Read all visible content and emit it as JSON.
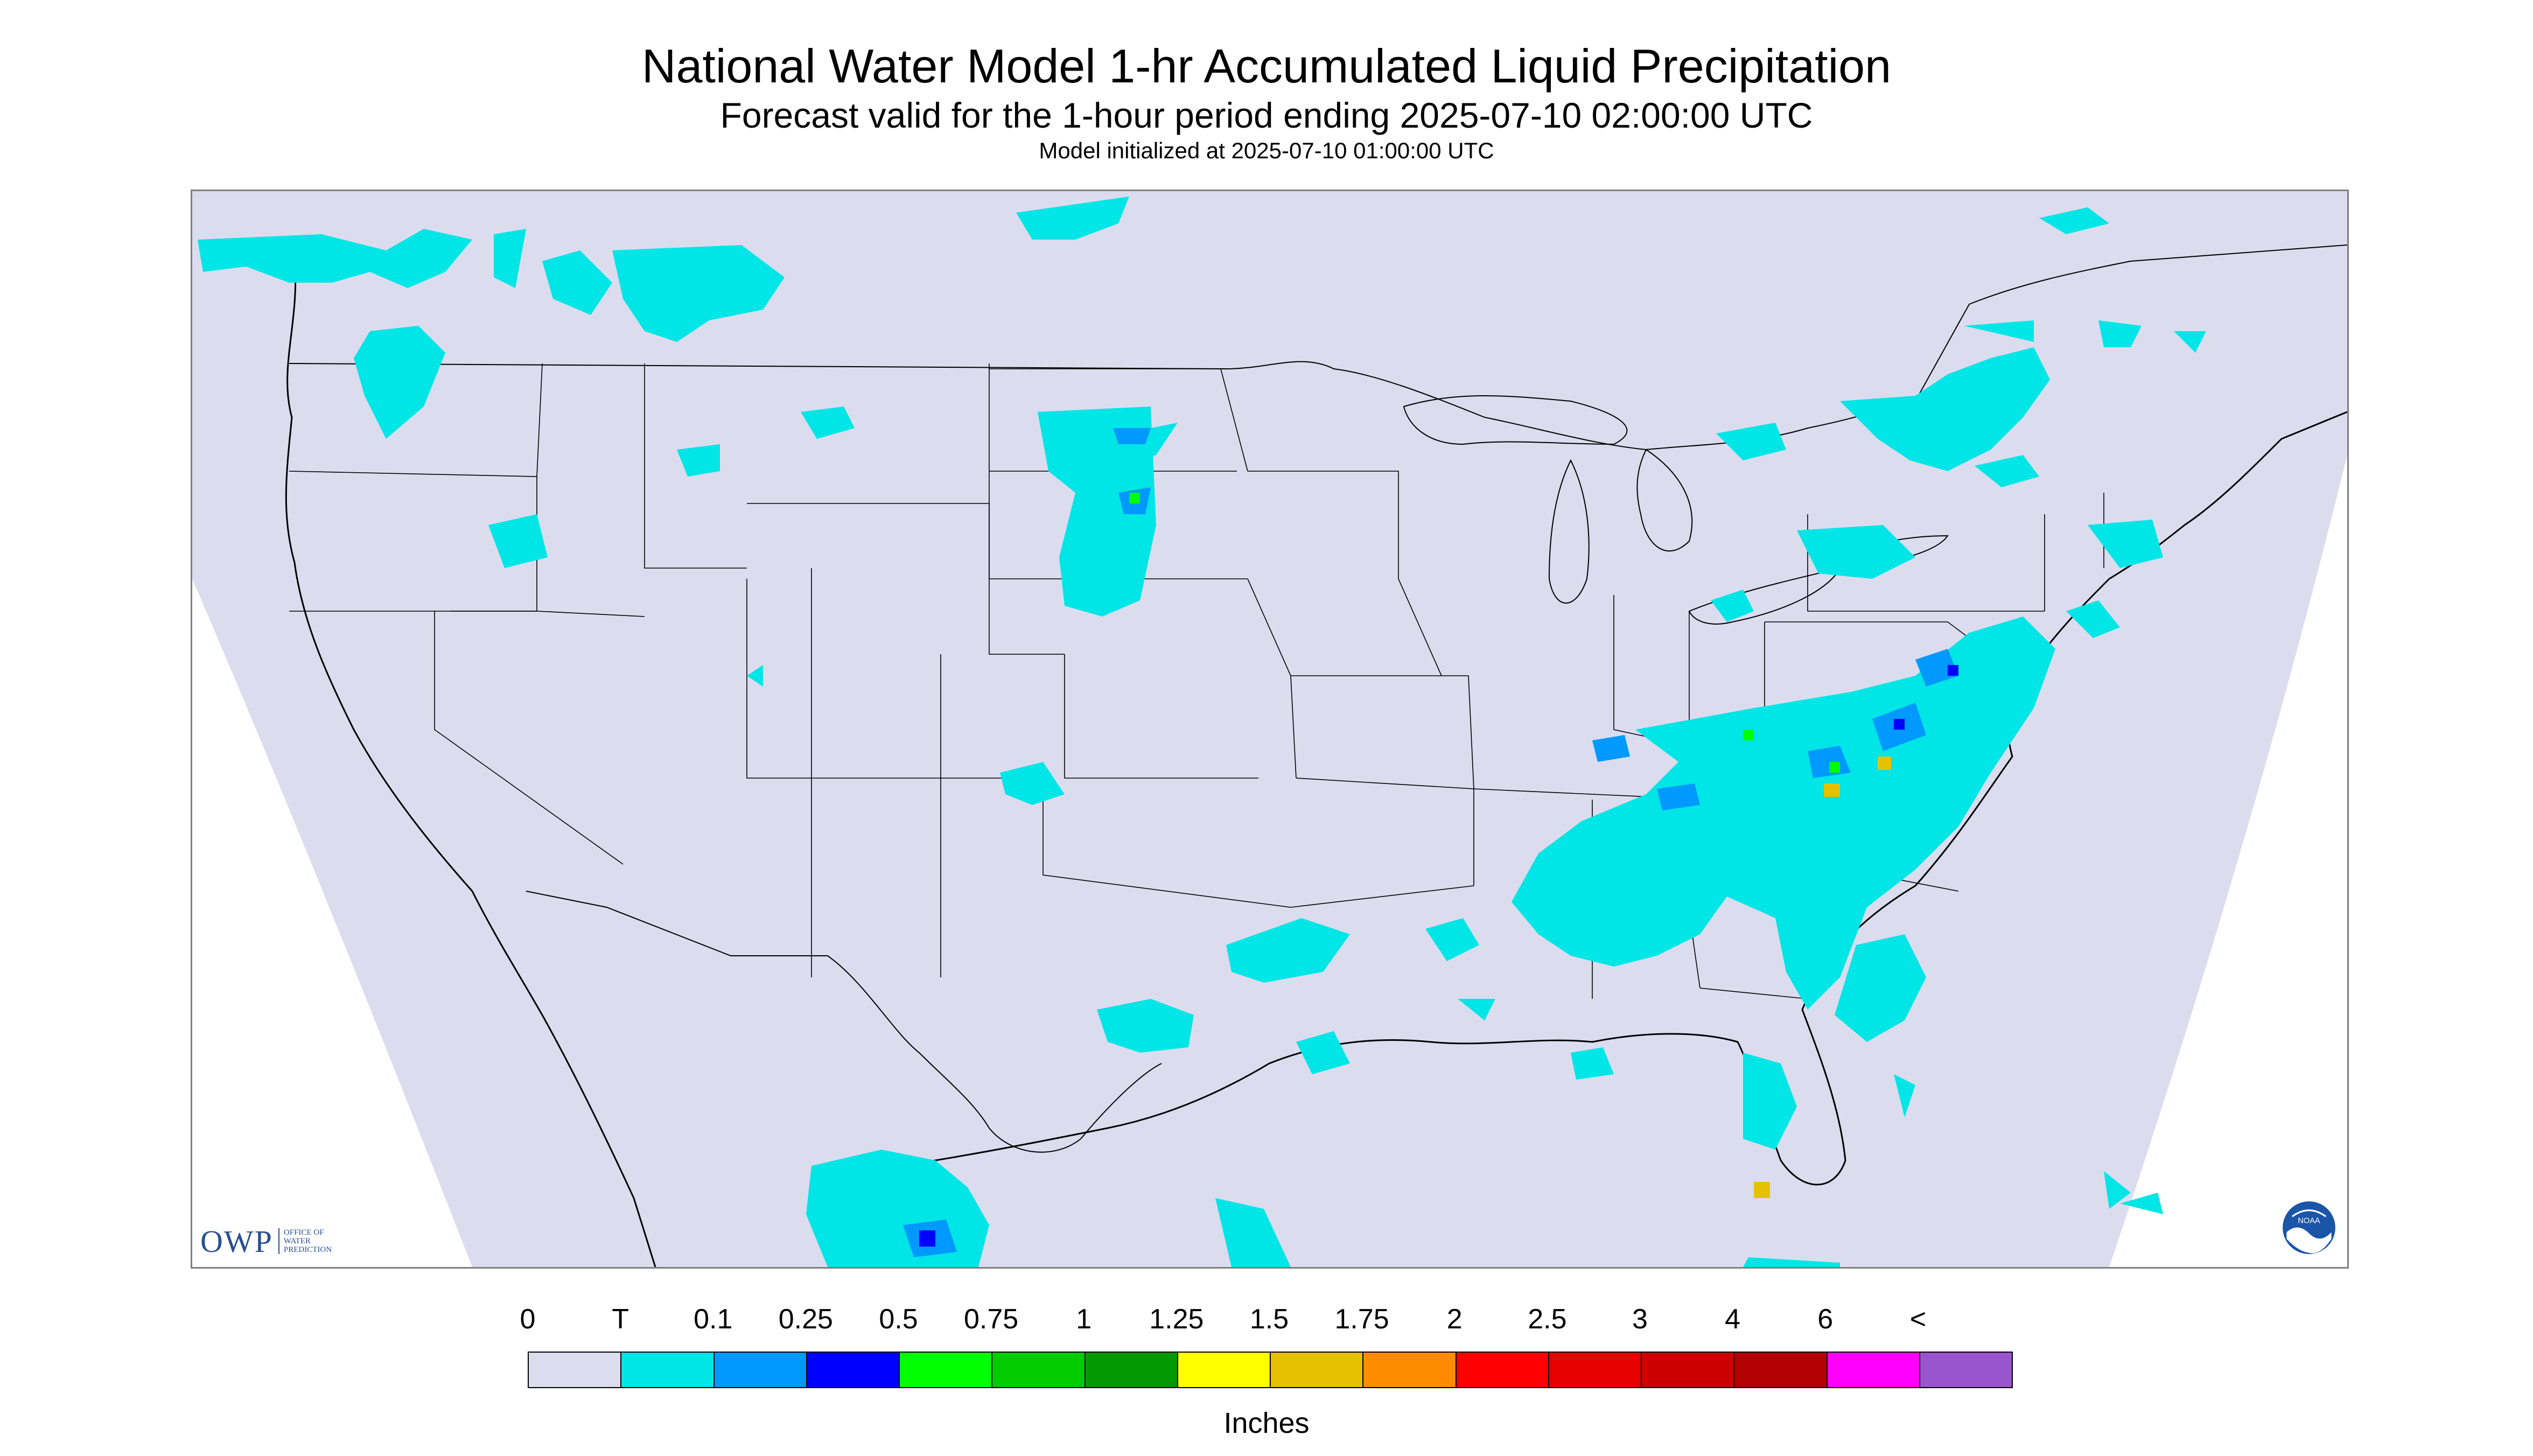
{
  "title": "National Water Model 1-hr Accumulated Liquid Precipitation",
  "subtitle": "Forecast valid for the 1-hour period ending 2025-07-10 02:00:00 UTC",
  "init": "Model initialized at 2025-07-10 01:00:00 UTC",
  "map": {
    "background_color": "#dcdcef",
    "outside_color": "#ffffff",
    "boundary_color": "#000000"
  },
  "logos": {
    "owp_word": "OWP",
    "owp_sub": [
      "OFFICE OF",
      "WATER",
      "PREDICTION"
    ],
    "noaa_text": "NOAA"
  },
  "legend": {
    "labels": [
      "0",
      "T",
      "0.1",
      "0.25",
      "0.5",
      "0.75",
      "1",
      "1.25",
      "1.5",
      "1.75",
      "2",
      "2.5",
      "3",
      "4",
      "6",
      "<"
    ],
    "colors": [
      "#dcdcef",
      "#00e5e5",
      "#0099ff",
      "#0000ff",
      "#00ff00",
      "#00cc00",
      "#009900",
      "#ffff00",
      "#e5c100",
      "#ff8c00",
      "#ff0000",
      "#e60000",
      "#cc0000",
      "#b30000",
      "#ff00ff",
      "#9955cc"
    ],
    "units": "Inches"
  }
}
